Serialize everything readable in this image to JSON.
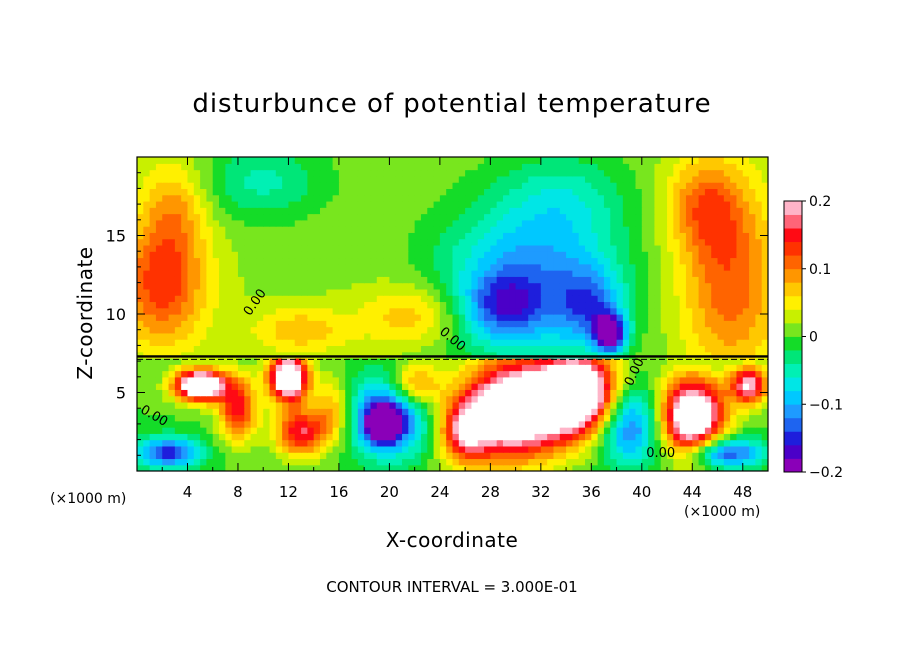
{
  "chart_data": {
    "type": "heatmap",
    "title": "disturbunce of potential temperature",
    "xlabel": "X-coordinate",
    "ylabel": "Z-coordinate",
    "x_unit_label": "(×1000 m)",
    "x_unit_label_right": "(×1000 m)",
    "footer": "CONTOUR INTERVAL = 3.000E-01",
    "xlim": [
      0,
      50
    ],
    "ylim": [
      0,
      20
    ],
    "x_ticks": [
      4,
      8,
      12,
      16,
      20,
      24,
      28,
      32,
      36,
      40,
      44,
      48
    ],
    "y_ticks": [
      5,
      10,
      15
    ],
    "colorbar": {
      "range": [
        -0.2,
        0.2
      ],
      "tick_values": [
        0.2,
        0.1,
        0,
        -0.1,
        -0.2
      ],
      "tick_labels": [
        "0.2",
        "0.1",
        "0",
        "−0.1",
        "−0.2"
      ],
      "colors": [
        "#8a00b8",
        "#4b00c8",
        "#1e1edc",
        "#1e64f0",
        "#1e9bff",
        "#00c8ff",
        "#00e6e6",
        "#00f0b4",
        "#00e678",
        "#14dc28",
        "#78e61e",
        "#c8f000",
        "#fff000",
        "#ffc800",
        "#ff9600",
        "#ff6400",
        "#ff3200",
        "#ff0a14",
        "#ff6478",
        "#ffb4c8"
      ]
    },
    "contour_labels": [
      {
        "text": "0.00",
        "x": 9.6,
        "z": 10.6,
        "rot": -55
      },
      {
        "text": "0.00",
        "x": 24.8,
        "z": 8.2,
        "rot": 40
      },
      {
        "text": "0.00",
        "x": 39.7,
        "z": 6.2,
        "rot": -65
      },
      {
        "text": "0.00",
        "x": 41.5,
        "z": 0.9,
        "rot": 0
      },
      {
        "text": "0.00",
        "x": 1.2,
        "z": 3.3,
        "rot": 30
      }
    ],
    "field_blobs": [
      {
        "x": 2,
        "z": 12,
        "rx": 3.5,
        "rz": 4,
        "v": 0.12
      },
      {
        "x": 3,
        "z": 17,
        "rx": 2.5,
        "rz": 3,
        "v": 0.06
      },
      {
        "x": 10,
        "z": 18.5,
        "rx": 5,
        "rz": 2.5,
        "v": -0.06
      },
      {
        "x": 13,
        "z": 9,
        "rx": 4,
        "rz": 1.5,
        "v": 0.06
      },
      {
        "x": 22,
        "z": 10,
        "rx": 4,
        "rz": 2,
        "v": 0.07
      },
      {
        "x": 19,
        "z": 16,
        "rx": 3,
        "rz": 3,
        "v": 0.0
      },
      {
        "x": 31,
        "z": 12,
        "rx": 7,
        "rz": 5,
        "v": -0.13
      },
      {
        "x": 29,
        "z": 10.5,
        "rx": 3,
        "rz": 2,
        "v": -0.08
      },
      {
        "x": 36,
        "z": 10.5,
        "rx": 2.5,
        "rz": 2.5,
        "v": -0.09
      },
      {
        "x": 34,
        "z": 17.5,
        "rx": 5,
        "rz": 3,
        "v": -0.05
      },
      {
        "x": 37.5,
        "z": 8.8,
        "rx": 1.2,
        "rz": 1.2,
        "v": -0.2
      },
      {
        "x": 47,
        "z": 12,
        "rx": 4,
        "rz": 6,
        "v": 0.1
      },
      {
        "x": 45,
        "z": 17,
        "rx": 3,
        "rz": 3,
        "v": 0.08
      },
      {
        "x": 5,
        "z": 5.5,
        "rx": 2,
        "rz": 1,
        "v": 0.3
      },
      {
        "x": 8,
        "z": 4,
        "rx": 1.5,
        "rz": 2,
        "v": 0.15
      },
      {
        "x": 12,
        "z": 6,
        "rx": 1.5,
        "rz": 1.5,
        "v": 0.3
      },
      {
        "x": 13,
        "z": 2.5,
        "rx": 2,
        "rz": 1.5,
        "v": 0.16
      },
      {
        "x": 20,
        "z": 3.5,
        "rx": 3,
        "rz": 2.5,
        "v": -0.17
      },
      {
        "x": 19.5,
        "z": 3.0,
        "rx": 1.2,
        "rz": 1,
        "v": -0.22
      },
      {
        "x": 22,
        "z": 5.5,
        "rx": 2,
        "rz": 1.5,
        "v": 0.12
      },
      {
        "x": 30,
        "z": 4,
        "rx": 4,
        "rz": 3,
        "v": 0.3
      },
      {
        "x": 26,
        "z": 2.5,
        "rx": 2,
        "rz": 2,
        "v": 0.15
      },
      {
        "x": 35,
        "z": 5,
        "rx": 3,
        "rz": 2.5,
        "v": 0.3
      },
      {
        "x": 39,
        "z": 3,
        "rx": 2.5,
        "rz": 2.5,
        "v": -0.14
      },
      {
        "x": 44,
        "z": 3.5,
        "rx": 2.5,
        "rz": 2.5,
        "v": 0.28
      },
      {
        "x": 46.5,
        "z": 1.2,
        "rx": 3,
        "rz": 1,
        "v": -0.16
      },
      {
        "x": 48.5,
        "z": 5.5,
        "rx": 1.5,
        "rz": 1.2,
        "v": 0.2
      },
      {
        "x": 2.5,
        "z": 1.2,
        "rx": 2.5,
        "rz": 1,
        "v": -0.15
      },
      {
        "x": 15.5,
        "z": 4,
        "rx": 1.5,
        "rz": 2,
        "v": 0.08
      }
    ]
  }
}
